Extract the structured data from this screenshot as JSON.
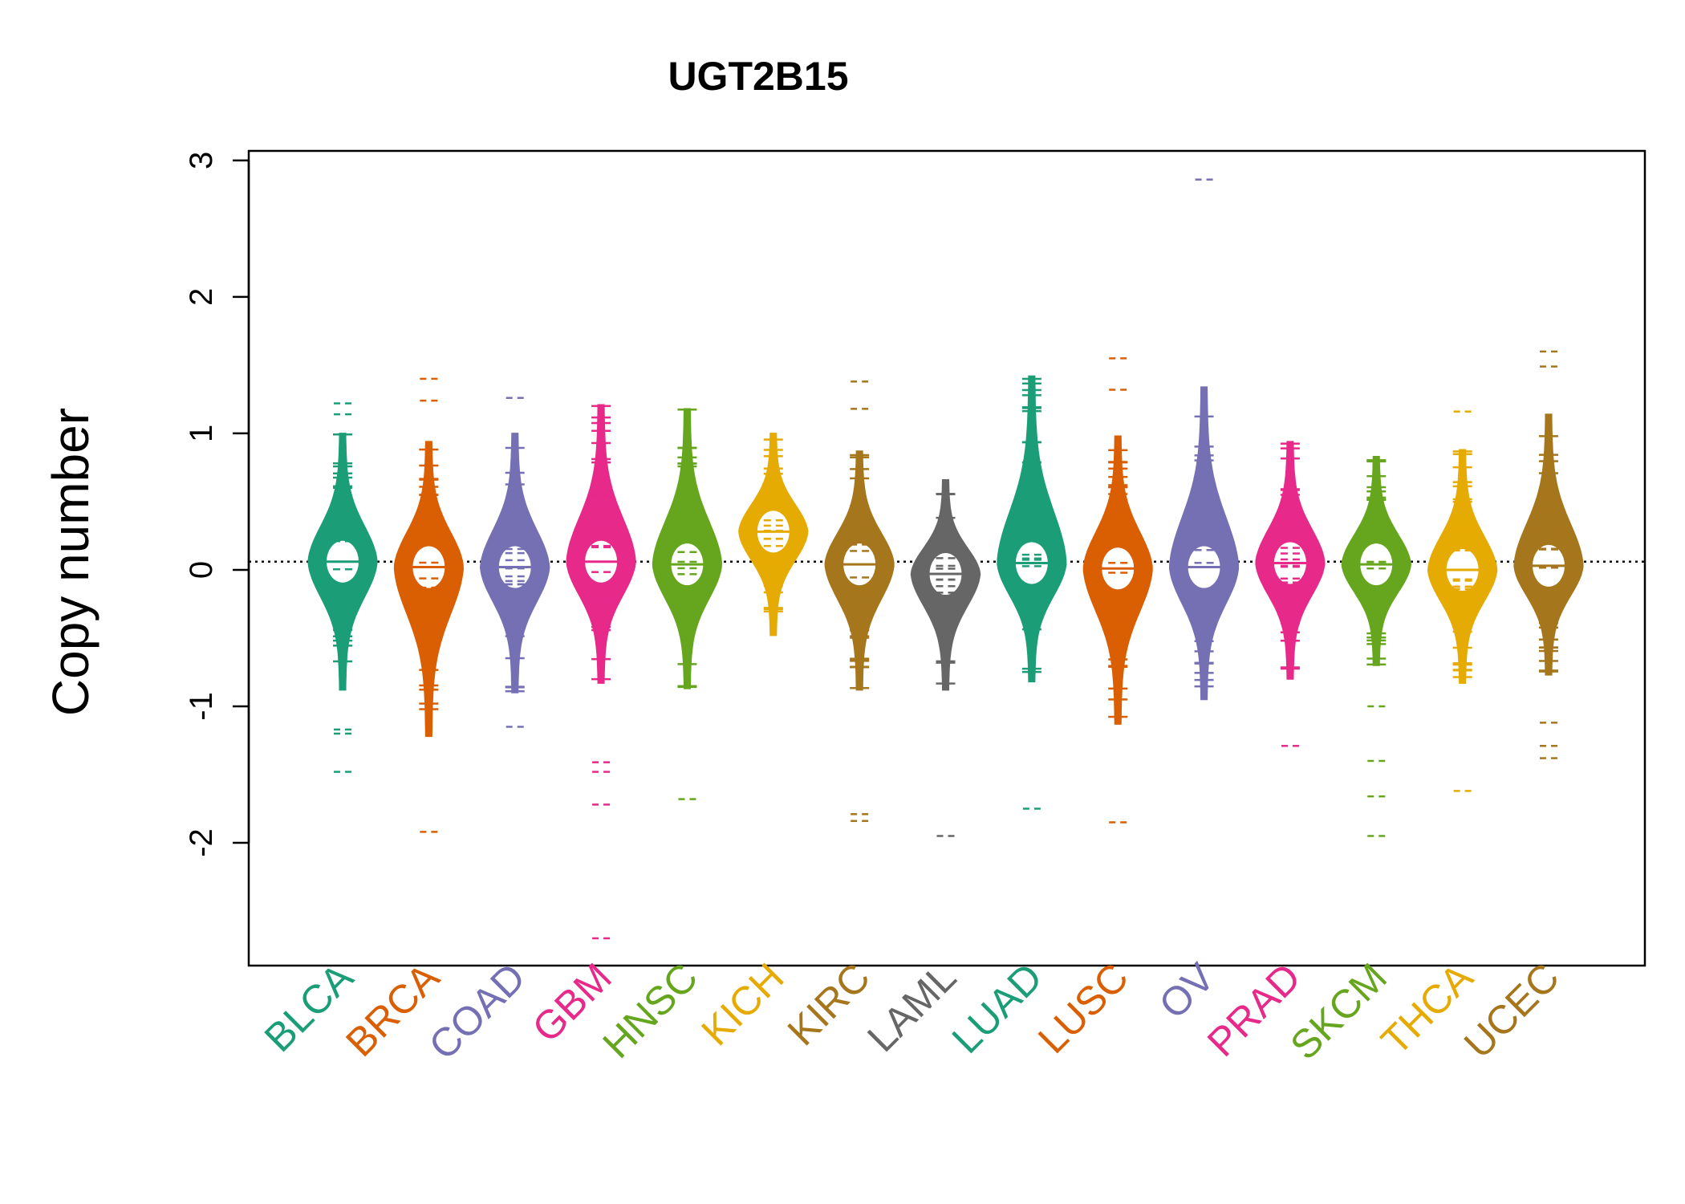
{
  "chart_data": {
    "type": "beanplot",
    "title": "UGT2B15",
    "ylabel": "Copy number",
    "xlabel": "",
    "ylim": [
      -2.9,
      3.07
    ],
    "yticks": [
      -2,
      -1,
      0,
      1,
      2,
      3
    ],
    "ytick_labels": [
      "-2",
      "-1",
      "0",
      "1",
      "2",
      "3"
    ],
    "reference_line": 0.06,
    "grid": false,
    "legend": "none",
    "categories": [
      "BLCA",
      "BRCA",
      "COAD",
      "GBM",
      "HNSC",
      "KICH",
      "KIRC",
      "LAML",
      "LUAD",
      "LUSC",
      "OV",
      "PRAD",
      "SKCM",
      "THCA",
      "UCEC"
    ],
    "series": [
      {
        "color": "#1b9e77",
        "min": -0.88,
        "max": 1.0,
        "median": 0.06,
        "outliers": [
          1.22,
          1.14,
          -1.17,
          -1.2,
          -1.48
        ]
      },
      {
        "color": "#d95f02",
        "min": -1.22,
        "max": 0.94,
        "median": 0.02,
        "outliers": [
          1.4,
          1.24,
          -1.92
        ]
      },
      {
        "color": "#7570b3",
        "min": -0.9,
        "max": 1.0,
        "median": 0.02,
        "outliers": [
          1.26,
          -1.15
        ]
      },
      {
        "color": "#e7298a",
        "min": -0.83,
        "max": 1.21,
        "median": 0.06,
        "outliers": [
          -1.41,
          -1.48,
          -1.72,
          -2.7
        ]
      },
      {
        "color": "#66a61e",
        "min": -0.87,
        "max": 1.18,
        "median": 0.04,
        "outliers": [
          -1.68
        ]
      },
      {
        "color": "#e6ab02",
        "min": -0.48,
        "max": 1.0,
        "median": 0.28,
        "outliers": []
      },
      {
        "color": "#a6761d",
        "min": -0.88,
        "max": 0.87,
        "median": 0.04,
        "outliers": [
          1.38,
          1.18,
          -1.79,
          -1.84
        ]
      },
      {
        "color": "#666666",
        "min": -0.88,
        "max": 0.66,
        "median": -0.03,
        "outliers": [
          -1.95
        ]
      },
      {
        "color": "#1b9e77",
        "min": -0.82,
        "max": 1.42,
        "median": 0.05,
        "outliers": [
          -1.75
        ]
      },
      {
        "color": "#d95f02",
        "min": -1.13,
        "max": 0.98,
        "median": 0.01,
        "outliers": [
          1.55,
          1.32,
          -1.85
        ]
      },
      {
        "color": "#7570b3",
        "min": -0.95,
        "max": 1.34,
        "median": 0.02,
        "outliers": [
          2.86
        ]
      },
      {
        "color": "#e7298a",
        "min": -0.8,
        "max": 0.94,
        "median": 0.05,
        "outliers": [
          -1.29
        ]
      },
      {
        "color": "#66a61e",
        "min": -0.7,
        "max": 0.83,
        "median": 0.04,
        "outliers": [
          -1.0,
          -1.4,
          -1.66,
          -1.95
        ]
      },
      {
        "color": "#e6ab02",
        "min": -0.83,
        "max": 0.88,
        "median": 0.0,
        "outliers": [
          1.16,
          -1.62
        ]
      },
      {
        "color": "#a6761d",
        "min": -0.77,
        "max": 1.14,
        "median": 0.03,
        "outliers": [
          1.6,
          1.49,
          -1.12,
          -1.29,
          -1.38
        ]
      }
    ]
  }
}
